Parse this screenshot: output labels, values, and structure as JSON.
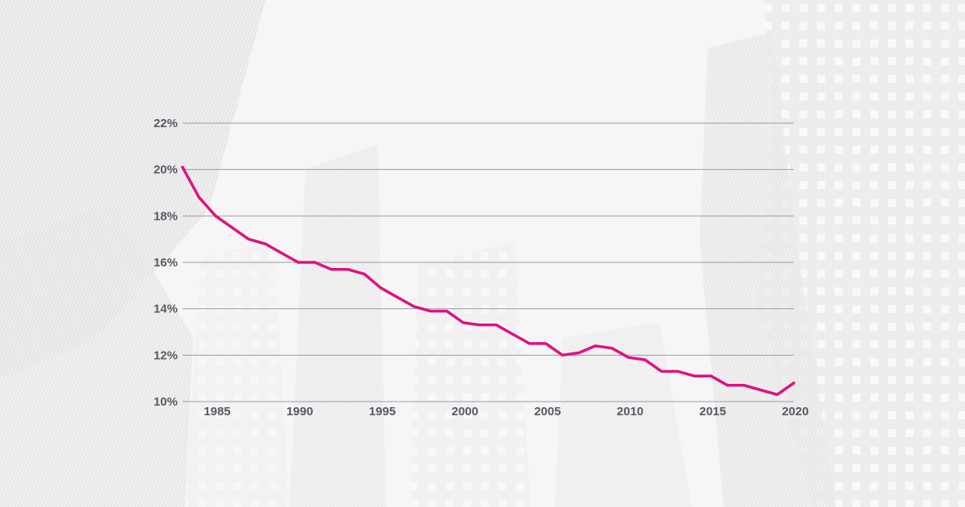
{
  "chart_data": {
    "type": "line",
    "title": "",
    "xlabel": "",
    "ylabel": "",
    "xlim": [
      1983,
      2020
    ],
    "ylim": [
      10,
      22
    ],
    "y_ticks": [
      {
        "value": 10,
        "label": "10%"
      },
      {
        "value": 12,
        "label": "12%"
      },
      {
        "value": 14,
        "label": "14%"
      },
      {
        "value": 16,
        "label": "16%"
      },
      {
        "value": 18,
        "label": "18%"
      },
      {
        "value": 20,
        "label": "20%"
      },
      {
        "value": 22,
        "label": "22%"
      }
    ],
    "x_ticks": [
      {
        "value": 1985,
        "label": "1985"
      },
      {
        "value": 1990,
        "label": "1990"
      },
      {
        "value": 1995,
        "label": "1995"
      },
      {
        "value": 2000,
        "label": "2000"
      },
      {
        "value": 2005,
        "label": "2005"
      },
      {
        "value": 2010,
        "label": "2010"
      },
      {
        "value": 2015,
        "label": "2015"
      },
      {
        "value": 2020,
        "label": "2020"
      }
    ],
    "grid": true,
    "legend": "none",
    "series": [
      {
        "name": "rate",
        "color": "#e0117f",
        "x": [
          1983,
          1984,
          1985,
          1986,
          1987,
          1988,
          1989,
          1990,
          1991,
          1992,
          1993,
          1994,
          1995,
          1996,
          1997,
          1998,
          1999,
          2000,
          2001,
          2002,
          2003,
          2004,
          2005,
          2006,
          2007,
          2008,
          2009,
          2010,
          2011,
          2012,
          2013,
          2014,
          2015,
          2016,
          2017,
          2018,
          2019,
          2020
        ],
        "values": [
          20.1,
          18.8,
          18.0,
          17.5,
          17.0,
          16.8,
          16.4,
          16.0,
          16.0,
          15.7,
          15.7,
          15.5,
          14.9,
          14.5,
          14.1,
          13.9,
          13.9,
          13.4,
          13.3,
          13.3,
          12.9,
          12.5,
          12.5,
          12.0,
          12.1,
          12.4,
          12.3,
          11.9,
          11.8,
          11.3,
          11.3,
          11.1,
          11.1,
          10.7,
          10.7,
          10.5,
          10.3,
          10.8
        ]
      }
    ]
  },
  "style": {
    "line_color": "#e0117f",
    "grid_color": "#9a9ca0",
    "label_color": "#555a60"
  }
}
